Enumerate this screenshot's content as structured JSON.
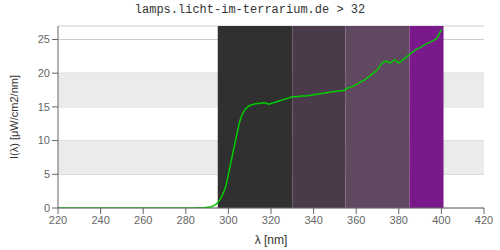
{
  "chart_data": {
    "type": "line",
    "title": "lamps.licht-im-terrarium.de > 32",
    "xlabel": "λ [nm]",
    "ylabel": "I(λ)  [μW/cm2/nm]",
    "xlim": [
      220,
      420
    ],
    "ylim": [
      0,
      27
    ],
    "xticks": [
      220,
      240,
      260,
      280,
      300,
      320,
      340,
      360,
      380,
      400,
      420
    ],
    "yticks": [
      0,
      5,
      10,
      15,
      20,
      25
    ],
    "grid": true,
    "bands": [
      {
        "y0": 5,
        "y1": 10,
        "color": "#ebebeb"
      },
      {
        "y0": 15,
        "y1": 20,
        "color": "#ebebeb"
      }
    ],
    "regions": [
      {
        "x0": 295,
        "x1": 330,
        "y0": 0,
        "y1": 27,
        "color": "#303030"
      },
      {
        "x0": 330,
        "x1": 355,
        "y0": 0,
        "y1": 27,
        "color": "#4a3a4a"
      },
      {
        "x0": 355,
        "x1": 385,
        "y0": 0,
        "y1": 27,
        "color": "#604860"
      },
      {
        "x0": 385,
        "x1": 401,
        "y0": 0,
        "y1": 27,
        "color": "#7a1a8a"
      }
    ],
    "x": [
      220,
      270,
      280,
      285,
      288,
      290,
      292,
      294,
      295,
      296,
      297,
      298,
      299,
      300,
      301,
      302,
      303,
      304,
      305,
      306,
      307,
      308,
      309,
      310,
      311,
      312,
      313,
      314,
      315,
      316,
      317,
      318,
      319,
      320,
      321,
      322,
      323,
      324,
      325,
      326,
      327,
      328,
      329,
      330,
      332,
      334,
      336,
      338,
      340,
      342,
      344,
      346,
      348,
      350,
      352,
      354,
      356,
      358,
      360,
      362,
      364,
      366,
      368,
      370,
      372,
      374,
      376,
      378,
      380,
      382,
      384,
      386,
      388,
      390,
      392,
      394,
      396,
      398,
      400
    ],
    "series": [
      {
        "color": "#00cc00",
        "values": [
          0.0,
          0.0,
          0.01,
          0.02,
          0.05,
          0.1,
          0.2,
          0.5,
          0.8,
          1.2,
          1.8,
          2.5,
          3.5,
          5.0,
          6.5,
          8.0,
          9.5,
          11.0,
          12.5,
          13.5,
          14.2,
          14.7,
          15.0,
          15.2,
          15.3,
          15.4,
          15.5,
          15.5,
          15.5,
          15.6,
          15.6,
          15.5,
          15.4,
          15.5,
          15.6,
          15.7,
          15.8,
          15.9,
          16.0,
          16.1,
          16.2,
          16.3,
          16.4,
          16.5,
          16.5,
          16.6,
          16.6,
          16.7,
          16.8,
          16.9,
          17.0,
          17.1,
          17.2,
          17.3,
          17.4,
          17.4,
          17.8,
          18.0,
          18.3,
          18.7,
          19.0,
          19.5,
          20.0,
          20.5,
          21.5,
          21.8,
          21.5,
          22.0,
          21.5,
          22.0,
          22.5,
          23.0,
          23.5,
          23.8,
          24.2,
          24.5,
          24.8,
          25.2,
          26.5
        ]
      }
    ]
  }
}
